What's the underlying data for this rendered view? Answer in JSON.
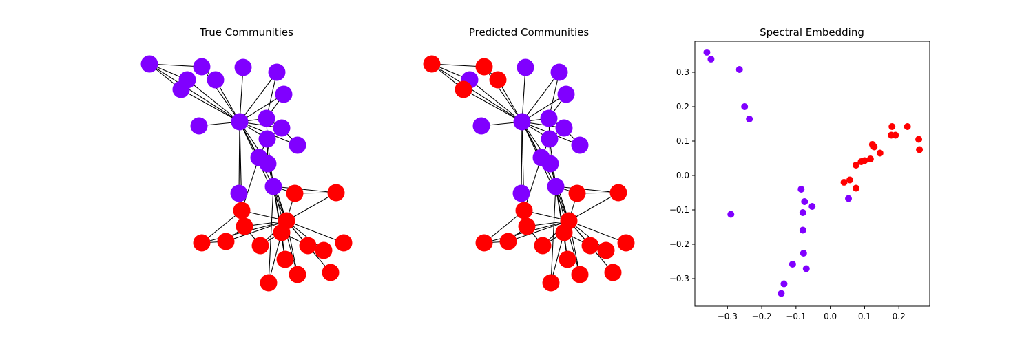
{
  "colors": {
    "community_a": "#8000ff",
    "community_b": "#ff0000",
    "edge": "#000000",
    "axis": "#000000"
  },
  "chart_data": [
    {
      "type": "network",
      "title": "True Communities",
      "nodes": [
        {
          "id": 0,
          "community": "a"
        },
        {
          "id": 1,
          "community": "a"
        },
        {
          "id": 2,
          "community": "a"
        },
        {
          "id": 3,
          "community": "a"
        },
        {
          "id": 4,
          "community": "a"
        },
        {
          "id": 5,
          "community": "a"
        },
        {
          "id": 6,
          "community": "a"
        },
        {
          "id": 7,
          "community": "a"
        },
        {
          "id": 8,
          "community": "a"
        },
        {
          "id": 9,
          "community": "a"
        },
        {
          "id": 10,
          "community": "a"
        },
        {
          "id": 11,
          "community": "a"
        },
        {
          "id": 12,
          "community": "a"
        },
        {
          "id": 13,
          "community": "a"
        },
        {
          "id": 14,
          "community": "a"
        },
        {
          "id": 15,
          "community": "a"
        },
        {
          "id": 16,
          "community": "a"
        },
        {
          "id": 17,
          "community": "a"
        },
        {
          "id": 18,
          "community": "b"
        },
        {
          "id": 19,
          "community": "b"
        },
        {
          "id": 20,
          "community": "b"
        },
        {
          "id": 21,
          "community": "b"
        },
        {
          "id": 22,
          "community": "b"
        },
        {
          "id": 23,
          "community": "b"
        },
        {
          "id": 24,
          "community": "b"
        },
        {
          "id": 25,
          "community": "b"
        },
        {
          "id": 26,
          "community": "b"
        },
        {
          "id": 27,
          "community": "b"
        },
        {
          "id": 28,
          "community": "b"
        },
        {
          "id": 29,
          "community": "b"
        },
        {
          "id": 30,
          "community": "b"
        },
        {
          "id": 31,
          "community": "b"
        },
        {
          "id": 32,
          "community": "b"
        },
        {
          "id": 33,
          "community": "b"
        }
      ]
    },
    {
      "type": "network",
      "title": "Predicted Communities",
      "nodes": [
        {
          "id": 0,
          "community": "b"
        },
        {
          "id": 1,
          "community": "a"
        },
        {
          "id": 2,
          "community": "b"
        },
        {
          "id": 3,
          "community": "b"
        },
        {
          "id": 4,
          "community": "b"
        },
        {
          "id": 5,
          "community": "a"
        },
        {
          "id": 6,
          "community": "a"
        },
        {
          "id": 7,
          "community": "a"
        },
        {
          "id": 8,
          "community": "a"
        },
        {
          "id": 9,
          "community": "a"
        },
        {
          "id": 10,
          "community": "a"
        },
        {
          "id": 11,
          "community": "a"
        },
        {
          "id": 12,
          "community": "a"
        },
        {
          "id": 13,
          "community": "a"
        },
        {
          "id": 14,
          "community": "a"
        },
        {
          "id": 15,
          "community": "a"
        },
        {
          "id": 16,
          "community": "a"
        },
        {
          "id": 17,
          "community": "a"
        },
        {
          "id": 18,
          "community": "b"
        },
        {
          "id": 19,
          "community": "b"
        },
        {
          "id": 20,
          "community": "b"
        },
        {
          "id": 21,
          "community": "b"
        },
        {
          "id": 22,
          "community": "b"
        },
        {
          "id": 23,
          "community": "b"
        },
        {
          "id": 24,
          "community": "b"
        },
        {
          "id": 25,
          "community": "b"
        },
        {
          "id": 26,
          "community": "b"
        },
        {
          "id": 27,
          "community": "b"
        },
        {
          "id": 28,
          "community": "b"
        },
        {
          "id": 29,
          "community": "b"
        },
        {
          "id": 30,
          "community": "b"
        },
        {
          "id": 31,
          "community": "b"
        },
        {
          "id": 32,
          "community": "b"
        },
        {
          "id": 33,
          "community": "b"
        }
      ]
    },
    {
      "type": "scatter",
      "title": "Spectral Embedding",
      "xlabel": "",
      "ylabel": "",
      "xlim": [
        -0.395,
        0.29
      ],
      "ylim": [
        -0.38,
        0.39
      ],
      "xticks": [
        -0.3,
        -0.2,
        -0.1,
        0.0,
        0.1,
        0.2
      ],
      "xtick_labels": [
        "−0.3",
        "−0.2",
        "−0.1",
        "0.0",
        "0.1",
        "0.2"
      ],
      "yticks": [
        -0.3,
        -0.2,
        -0.1,
        0.0,
        0.1,
        0.2,
        0.3
      ],
      "ytick_labels": [
        "−0.3",
        "−0.2",
        "−0.1",
        "0.0",
        "0.1",
        "0.2",
        "0.3"
      ],
      "grid": false,
      "series": [
        {
          "color_key": "community_a",
          "points": [
            {
              "x": -0.36,
              "y": 0.358
            },
            {
              "x": -0.348,
              "y": 0.338
            },
            {
              "x": -0.265,
              "y": 0.308
            },
            {
              "x": -0.25,
              "y": 0.2
            },
            {
              "x": -0.236,
              "y": 0.164
            },
            {
              "x": -0.29,
              "y": -0.113
            },
            {
              "x": -0.085,
              "y": -0.04
            },
            {
              "x": -0.075,
              "y": -0.076
            },
            {
              "x": -0.053,
              "y": -0.09
            },
            {
              "x": -0.08,
              "y": -0.108
            },
            {
              "x": -0.08,
              "y": -0.159
            },
            {
              "x": -0.078,
              "y": -0.226
            },
            {
              "x": -0.11,
              "y": -0.258
            },
            {
              "x": -0.07,
              "y": -0.271
            },
            {
              "x": -0.135,
              "y": -0.315
            },
            {
              "x": -0.143,
              "y": -0.343
            },
            {
              "x": 0.053,
              "y": -0.067
            }
          ]
        },
        {
          "color_key": "community_b",
          "points": [
            {
              "x": 0.04,
              "y": -0.02
            },
            {
              "x": 0.057,
              "y": -0.013
            },
            {
              "x": 0.075,
              "y": -0.037
            },
            {
              "x": 0.075,
              "y": 0.03
            },
            {
              "x": 0.09,
              "y": 0.04
            },
            {
              "x": 0.097,
              "y": 0.042
            },
            {
              "x": 0.1,
              "y": 0.043
            },
            {
              "x": 0.117,
              "y": 0.048
            },
            {
              "x": 0.123,
              "y": 0.09
            },
            {
              "x": 0.128,
              "y": 0.083
            },
            {
              "x": 0.145,
              "y": 0.065
            },
            {
              "x": 0.178,
              "y": 0.117
            },
            {
              "x": 0.18,
              "y": 0.142
            },
            {
              "x": 0.19,
              "y": 0.117
            },
            {
              "x": 0.225,
              "y": 0.142
            },
            {
              "x": 0.258,
              "y": 0.105
            },
            {
              "x": 0.26,
              "y": 0.075
            }
          ]
        }
      ]
    }
  ]
}
